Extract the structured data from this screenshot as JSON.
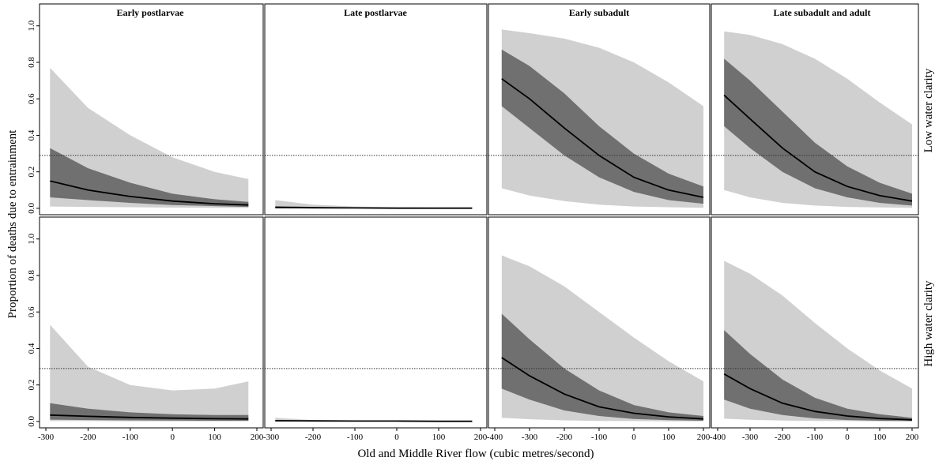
{
  "chart_data": {
    "type": "area",
    "ylabel": "Proportion of deaths due to entrainment",
    "xlabel": "Old and Middle River flow (cubic metres/second)",
    "columns": [
      "Early postlarvae",
      "Late postlarvae",
      "Early subadult",
      "Late subadult and adult"
    ],
    "rows": [
      "Low water clarity",
      "High water clarity"
    ],
    "ylim": [
      0,
      1.0
    ],
    "yticks": [
      "0.0",
      "0.2",
      "0.4",
      "0.6",
      "0.8",
      "1.0"
    ],
    "reference_line_y": 0.29,
    "xlims": [
      [
        -300,
        200
      ],
      [
        -300,
        200
      ],
      [
        -400,
        200
      ],
      [
        -400,
        200
      ]
    ],
    "xticks": [
      [
        "-300",
        "-200",
        "-100",
        "0",
        "100",
        "200"
      ],
      [
        "-300",
        "-200",
        "-100",
        "0",
        "100",
        "200"
      ],
      [
        "-400",
        "-300",
        "-200",
        "-100",
        "0",
        "100",
        "200"
      ],
      [
        "-400",
        "-300",
        "-200",
        "-100",
        "0",
        "100",
        "200"
      ]
    ],
    "colors": {
      "outer_band": "#d0d0d0",
      "inner_band": "#707070",
      "median": "#000000",
      "reference": "#333333"
    },
    "panels": [
      {
        "row": 0,
        "col": 0,
        "x": [
          -290,
          -200,
          -100,
          0,
          100,
          180
        ],
        "median": [
          0.15,
          0.1,
          0.065,
          0.04,
          0.025,
          0.018
        ],
        "inner_lo": [
          0.06,
          0.045,
          0.03,
          0.018,
          0.012,
          0.008
        ],
        "inner_hi": [
          0.33,
          0.22,
          0.14,
          0.08,
          0.05,
          0.035
        ],
        "outer_lo": [
          0.01,
          0.008,
          0.006,
          0.004,
          0.003,
          0.002
        ],
        "outer_hi": [
          0.77,
          0.55,
          0.4,
          0.28,
          0.2,
          0.16
        ]
      },
      {
        "row": 0,
        "col": 1,
        "x": [
          -290,
          -200,
          -100,
          0,
          100,
          180
        ],
        "median": [
          0.005,
          0.003,
          0.002,
          0.001,
          0.001,
          0.001
        ],
        "inner_lo": [
          0.001,
          0.001,
          0.001,
          0.0,
          0.0,
          0.0
        ],
        "inner_hi": [
          0.012,
          0.008,
          0.005,
          0.003,
          0.002,
          0.002
        ],
        "outer_lo": [
          0.0,
          0.0,
          0.0,
          0.0,
          0.0,
          0.0
        ],
        "outer_hi": [
          0.045,
          0.02,
          0.01,
          0.006,
          0.004,
          0.003
        ]
      },
      {
        "row": 0,
        "col": 2,
        "x": [
          -380,
          -300,
          -200,
          -100,
          0,
          100,
          200
        ],
        "median": [
          0.71,
          0.6,
          0.44,
          0.29,
          0.17,
          0.1,
          0.06
        ],
        "inner_lo": [
          0.56,
          0.44,
          0.29,
          0.17,
          0.09,
          0.045,
          0.025
        ],
        "inner_hi": [
          0.87,
          0.78,
          0.63,
          0.45,
          0.3,
          0.19,
          0.12
        ],
        "outer_lo": [
          0.11,
          0.07,
          0.04,
          0.02,
          0.01,
          0.006,
          0.003
        ],
        "outer_hi": [
          0.98,
          0.96,
          0.93,
          0.88,
          0.8,
          0.69,
          0.56
        ]
      },
      {
        "row": 0,
        "col": 3,
        "x": [
          -380,
          -300,
          -200,
          -100,
          0,
          100,
          200
        ],
        "median": [
          0.62,
          0.49,
          0.33,
          0.2,
          0.12,
          0.07,
          0.04
        ],
        "inner_lo": [
          0.45,
          0.33,
          0.2,
          0.11,
          0.06,
          0.03,
          0.015
        ],
        "inner_hi": [
          0.82,
          0.7,
          0.53,
          0.36,
          0.23,
          0.14,
          0.08
        ],
        "outer_lo": [
          0.1,
          0.06,
          0.03,
          0.015,
          0.008,
          0.005,
          0.003
        ],
        "outer_hi": [
          0.97,
          0.95,
          0.9,
          0.82,
          0.71,
          0.58,
          0.46
        ]
      },
      {
        "row": 1,
        "col": 0,
        "x": [
          -290,
          -200,
          -100,
          0,
          100,
          180
        ],
        "median": [
          0.035,
          0.028,
          0.022,
          0.018,
          0.015,
          0.014
        ],
        "inner_lo": [
          0.01,
          0.008,
          0.006,
          0.005,
          0.004,
          0.004
        ],
        "inner_hi": [
          0.1,
          0.07,
          0.05,
          0.04,
          0.035,
          0.035
        ],
        "outer_lo": [
          0.002,
          0.002,
          0.001,
          0.001,
          0.001,
          0.001
        ],
        "outer_hi": [
          0.53,
          0.3,
          0.2,
          0.17,
          0.18,
          0.22
        ]
      },
      {
        "row": 1,
        "col": 1,
        "x": [
          -290,
          -200,
          -100,
          0,
          100,
          180
        ],
        "median": [
          0.004,
          0.003,
          0.002,
          0.002,
          0.001,
          0.001
        ],
        "inner_lo": [
          0.001,
          0.001,
          0.0,
          0.0,
          0.0,
          0.0
        ],
        "inner_hi": [
          0.008,
          0.005,
          0.004,
          0.003,
          0.002,
          0.002
        ],
        "outer_lo": [
          0.0,
          0.0,
          0.0,
          0.0,
          0.0,
          0.0
        ],
        "outer_hi": [
          0.02,
          0.008,
          0.005,
          0.004,
          0.003,
          0.003
        ]
      },
      {
        "row": 1,
        "col": 2,
        "x": [
          -380,
          -300,
          -200,
          -100,
          0,
          100,
          200
        ],
        "median": [
          0.35,
          0.25,
          0.15,
          0.08,
          0.045,
          0.025,
          0.014
        ],
        "inner_lo": [
          0.18,
          0.12,
          0.06,
          0.03,
          0.014,
          0.007,
          0.004
        ],
        "inner_hi": [
          0.59,
          0.45,
          0.29,
          0.17,
          0.09,
          0.05,
          0.03
        ],
        "outer_lo": [
          0.02,
          0.012,
          0.006,
          0.003,
          0.002,
          0.001,
          0.001
        ],
        "outer_hi": [
          0.91,
          0.85,
          0.74,
          0.6,
          0.46,
          0.33,
          0.22
        ]
      },
      {
        "row": 1,
        "col": 3,
        "x": [
          -380,
          -300,
          -200,
          -100,
          0,
          100,
          200
        ],
        "median": [
          0.26,
          0.18,
          0.1,
          0.055,
          0.03,
          0.016,
          0.009
        ],
        "inner_lo": [
          0.12,
          0.07,
          0.035,
          0.017,
          0.008,
          0.004,
          0.002
        ],
        "inner_hi": [
          0.5,
          0.37,
          0.23,
          0.13,
          0.07,
          0.04,
          0.02
        ],
        "outer_lo": [
          0.015,
          0.009,
          0.005,
          0.003,
          0.002,
          0.001,
          0.001
        ],
        "outer_hi": [
          0.88,
          0.81,
          0.69,
          0.54,
          0.4,
          0.28,
          0.18
        ]
      }
    ]
  }
}
